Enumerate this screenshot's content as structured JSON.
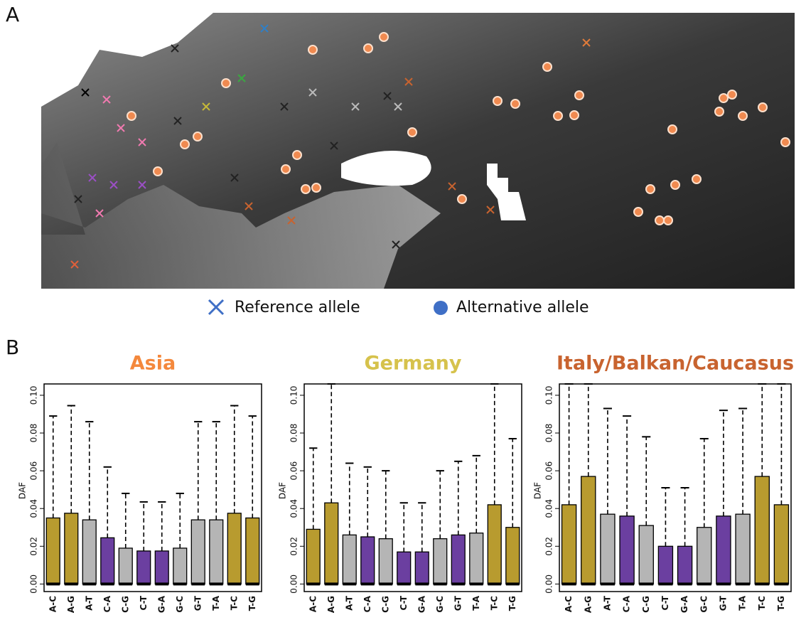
{
  "panels": {
    "a": "A",
    "b": "B"
  },
  "map": {
    "legend": [
      {
        "label": "Reference allele"
      },
      {
        "label": "Alternative allele"
      }
    ]
  },
  "chart_data": [
    {
      "type": "bar",
      "title": "Asia",
      "title_color": "#f4883c",
      "ylabel": "DAF",
      "categories": [
        "A-C",
        "A-G",
        "A-T",
        "C-A",
        "C-G",
        "C-T",
        "G-A",
        "G-C",
        "G-T",
        "T-A",
        "T-C",
        "T-G"
      ],
      "values": [
        0.035,
        0.0375,
        0.034,
        0.0245,
        0.019,
        0.0175,
        0.0175,
        0.019,
        0.034,
        0.034,
        0.0375,
        0.035
      ],
      "upper": [
        0.089,
        0.0945,
        0.086,
        0.062,
        0.048,
        0.0435,
        0.0435,
        0.048,
        0.086,
        0.086,
        0.0945,
        0.089
      ],
      "colors": [
        "#b89b2f",
        "#b89b2f",
        "#b5b5b5",
        "#6b3fa0",
        "#b5b5b5",
        "#6b3fa0",
        "#6b3fa0",
        "#b5b5b5",
        "#b5b5b5",
        "#b5b5b5",
        "#b89b2f",
        "#b89b2f"
      ],
      "ylim": [
        -0.004,
        0.106
      ],
      "yticks": [
        {
          "value": 0,
          "label": "0.00"
        },
        0.02,
        0.04,
        0.06,
        0.08,
        {
          "value": 0.1,
          "label": "0.10"
        }
      ]
    },
    {
      "type": "bar",
      "title": "Germany",
      "title_color": "#d6c24c",
      "ylabel": "DAF",
      "categories": [
        "A-C",
        "A-G",
        "A-T",
        "C-A",
        "C-G",
        "C-T",
        "G-A",
        "G-C",
        "G-T",
        "T-A",
        "T-C",
        "T-G"
      ],
      "values": [
        0.029,
        0.043,
        0.026,
        0.025,
        0.024,
        0.017,
        0.017,
        0.024,
        0.026,
        0.027,
        0.042,
        0.03
      ],
      "upper": [
        0.072,
        0.106,
        0.064,
        0.062,
        0.06,
        0.043,
        0.043,
        0.06,
        0.065,
        0.068,
        0.106,
        0.077
      ],
      "colors": [
        "#b89b2f",
        "#b89b2f",
        "#b5b5b5",
        "#6b3fa0",
        "#b5b5b5",
        "#6b3fa0",
        "#6b3fa0",
        "#b5b5b5",
        "#6b3fa0",
        "#b5b5b5",
        "#b89b2f",
        "#b89b2f"
      ],
      "ylim": [
        -0.004,
        0.106
      ],
      "yticks": [
        {
          "value": 0,
          "label": "0.00"
        },
        0.02,
        0.04,
        0.06,
        0.08,
        {
          "value": 0.1,
          "label": "0.10"
        }
      ]
    },
    {
      "type": "bar",
      "title": "Italy/Balkan/Caucasus",
      "title_color": "#c8632f",
      "ylabel": "DAF",
      "categories": [
        "A-C",
        "A-G",
        "A-T",
        "C-A",
        "C-G",
        "C-T",
        "G-A",
        "G-C",
        "G-T",
        "T-A",
        "T-C",
        "T-G"
      ],
      "values": [
        0.042,
        0.057,
        0.037,
        0.036,
        0.031,
        0.02,
        0.02,
        0.03,
        0.036,
        0.037,
        0.057,
        0.042
      ],
      "upper": [
        0.106,
        0.106,
        0.093,
        0.089,
        0.078,
        0.051,
        0.051,
        0.077,
        0.092,
        0.093,
        0.106,
        0.106
      ],
      "colors": [
        "#b89b2f",
        "#b89b2f",
        "#b5b5b5",
        "#6b3fa0",
        "#b5b5b5",
        "#6b3fa0",
        "#6b3fa0",
        "#b5b5b5",
        "#6b3fa0",
        "#b5b5b5",
        "#b89b2f",
        "#b89b2f"
      ],
      "ylim": [
        -0.004,
        0.106
      ],
      "yticks": [
        {
          "value": 0,
          "label": "0.00"
        },
        0.02,
        0.04,
        0.06,
        0.08,
        {
          "value": 0.1,
          "label": "0.10"
        }
      ]
    }
  ]
}
